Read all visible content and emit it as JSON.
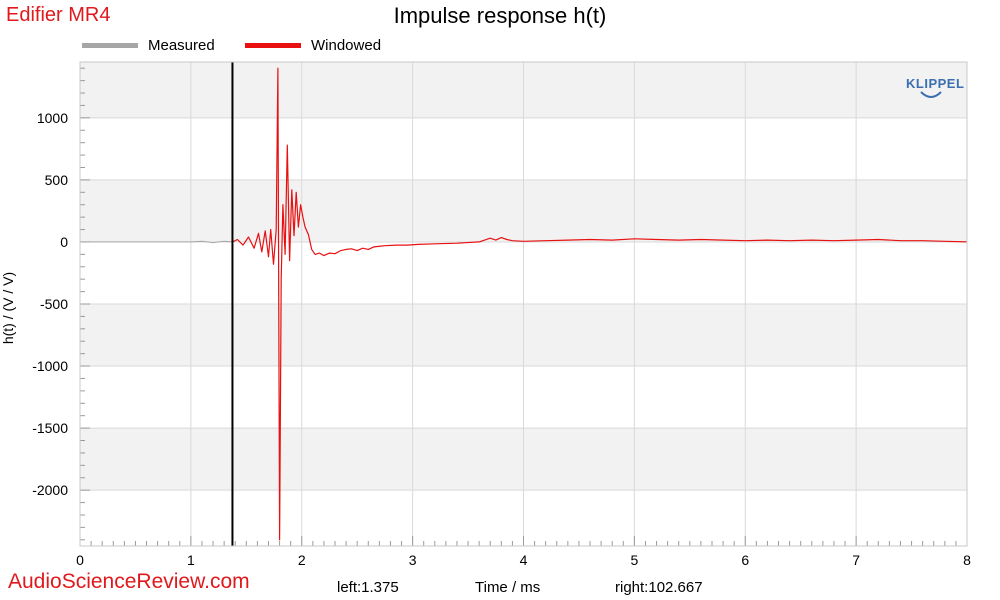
{
  "header": {
    "brand": "Edifier MR4",
    "title": "Impulse response h(t)"
  },
  "legend": [
    {
      "label": "Measured",
      "color": "#a6a6a6"
    },
    {
      "label": "Windowed",
      "color": "#e81010"
    }
  ],
  "logo": "KLIPPEL",
  "footer": {
    "site": "AudioScienceReview.com",
    "left": "left:1.375",
    "xlabel": "Time / ms",
    "right": "right:102.667"
  },
  "chart_data": {
    "type": "line",
    "title": "Impulse response h(t)",
    "xlabel": "Time / ms",
    "ylabel": "h(t) / (V / V)",
    "xlim": [
      0,
      8
    ],
    "ylim": [
      -2450,
      1450
    ],
    "x_ticks": [
      0,
      1,
      2,
      3,
      4,
      5,
      6,
      7,
      8
    ],
    "y_ticks": [
      1000,
      500,
      0,
      -500,
      -1000,
      -1500,
      -2000
    ],
    "grid": true,
    "legend_position": "top-left",
    "window_marker_x": 1.375,
    "series": [
      {
        "name": "Measured",
        "color": "#a6a6a6",
        "x": [
          0,
          0.5,
          1.0,
          1.1,
          1.2,
          1.3,
          1.375
        ],
        "y": [
          0,
          0,
          0,
          5,
          -5,
          5,
          0
        ]
      },
      {
        "name": "Windowed",
        "color": "#e81010",
        "x": [
          1.375,
          1.42,
          1.47,
          1.52,
          1.57,
          1.61,
          1.64,
          1.67,
          1.7,
          1.72,
          1.745,
          1.77,
          1.785,
          1.8,
          1.815,
          1.83,
          1.85,
          1.87,
          1.89,
          1.91,
          1.93,
          1.95,
          1.97,
          1.99,
          2.01,
          2.03,
          2.06,
          2.09,
          2.12,
          2.16,
          2.2,
          2.25,
          2.3,
          2.35,
          2.4,
          2.45,
          2.5,
          2.55,
          2.6,
          2.65,
          2.75,
          2.85,
          2.95,
          3.05,
          3.2,
          3.4,
          3.6,
          3.7,
          3.75,
          3.8,
          3.85,
          3.9,
          4.0,
          4.2,
          4.4,
          4.6,
          4.8,
          5.0,
          5.2,
          5.4,
          5.6,
          5.8,
          6.0,
          6.2,
          6.4,
          6.6,
          6.8,
          7.0,
          7.2,
          7.4,
          7.6,
          7.8,
          8.0
        ],
        "y": [
          0,
          20,
          -25,
          40,
          -50,
          70,
          -80,
          90,
          -120,
          100,
          -180,
          100,
          1400,
          -2400,
          -300,
          300,
          -100,
          780,
          -150,
          420,
          50,
          400,
          120,
          300,
          200,
          120,
          60,
          -60,
          -100,
          -90,
          -110,
          -90,
          -95,
          -70,
          -60,
          -55,
          -70,
          -50,
          -60,
          -40,
          -30,
          -25,
          -25,
          -20,
          -15,
          -10,
          0,
          30,
          15,
          35,
          20,
          10,
          5,
          10,
          15,
          20,
          15,
          25,
          20,
          15,
          20,
          15,
          10,
          15,
          10,
          15,
          10,
          15,
          20,
          10,
          10,
          5,
          0
        ]
      }
    ]
  }
}
